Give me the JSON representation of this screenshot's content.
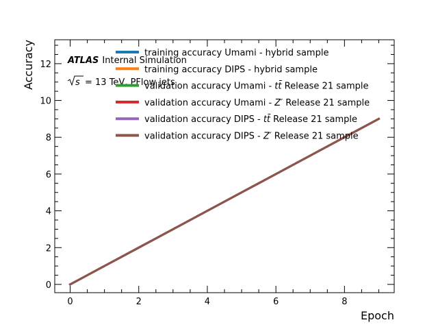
{
  "chart_data": {
    "type": "line",
    "xlabel": "Epoch",
    "ylabel": "Accuracy",
    "xlim": [
      -0.45,
      9.45
    ],
    "ylim": [
      -0.45,
      13.3
    ],
    "x_ticks_major": [
      0,
      2,
      4,
      6,
      8
    ],
    "y_ticks_major": [
      0,
      2,
      4,
      6,
      8,
      10,
      12
    ],
    "x_tick_labels": [
      "0",
      "2",
      "4",
      "6",
      "8"
    ],
    "y_tick_labels": [
      "0",
      "2",
      "4",
      "6",
      "8",
      "10",
      "12"
    ],
    "x_minor_step": 0.5,
    "y_minor_step": 0.5,
    "legend_position": "top-right",
    "annotation": {
      "atlas": "ATLAS",
      "label": "Internal Simulation",
      "energy_prefix": "s",
      "energy_text": "= 13 TeV, PFlow jets"
    },
    "series": [
      {
        "name": "training accuracy Umami - hybrid sample",
        "color": "#1f77b4",
        "x": [
          0,
          1,
          2,
          3,
          4,
          5,
          6,
          7,
          8,
          9
        ],
        "y": [
          0,
          1,
          2,
          3,
          4,
          5,
          6,
          7,
          8,
          9
        ]
      },
      {
        "name": "training accuracy DIPS - hybrid sample",
        "color": "#ff7f0e",
        "x": [
          0,
          1,
          2,
          3,
          4,
          5,
          6,
          7,
          8,
          9
        ],
        "y": [
          0,
          1,
          2,
          3,
          4,
          5,
          6,
          7,
          8,
          9
        ]
      },
      {
        "name": "validation accuracy Umami - t̄t Release 21 sample",
        "name_parts": [
          "validation accuracy Umami - ",
          "t",
          "t̄",
          " Release 21 sample"
        ],
        "color": "#2ca02c",
        "x": [
          0,
          1,
          2,
          3,
          4,
          5,
          6,
          7,
          8,
          9
        ],
        "y": [
          0,
          1,
          2,
          3,
          4,
          5,
          6,
          7,
          8,
          9
        ]
      },
      {
        "name": "validation accuracy Umami - Z′ Release 21 sample",
        "name_parts": [
          "validation accuracy Umami - ",
          "Z′",
          "",
          " Release 21 sample"
        ],
        "color": "#d62728",
        "x": [
          0,
          1,
          2,
          3,
          4,
          5,
          6,
          7,
          8,
          9
        ],
        "y": [
          0,
          1,
          2,
          3,
          4,
          5,
          6,
          7,
          8,
          9
        ]
      },
      {
        "name": "validation accuracy DIPS - t̄t Release 21 sample",
        "name_parts": [
          "validation accuracy DIPS - ",
          "t",
          "t̄",
          " Release 21 sample"
        ],
        "color": "#9467bd",
        "x": [
          0,
          1,
          2,
          3,
          4,
          5,
          6,
          7,
          8,
          9
        ],
        "y": [
          0,
          1,
          2,
          3,
          4,
          5,
          6,
          7,
          8,
          9
        ]
      },
      {
        "name": "validation accuracy DIPS - Z′ Release 21 sample",
        "name_parts": [
          "validation accuracy DIPS - ",
          "Z′",
          "",
          " Release 21 sample"
        ],
        "color": "#8c564b",
        "x": [
          0,
          1,
          2,
          3,
          4,
          5,
          6,
          7,
          8,
          9
        ],
        "y": [
          0,
          1,
          2,
          3,
          4,
          5,
          6,
          7,
          8,
          9
        ]
      }
    ]
  }
}
